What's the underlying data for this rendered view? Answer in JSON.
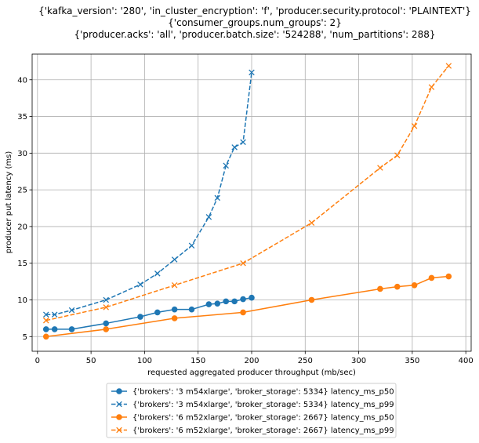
{
  "chart_data": {
    "type": "line",
    "title_lines": [
      "{'kafka_version': '280', 'in_cluster_encryption': 'f', 'producer.security.protocol': 'PLAINTEXT'}",
      "{'consumer_groups.num_groups': 2}",
      "{'producer.acks': 'all', 'producer.batch.size': '524288', 'num_partitions': 288}"
    ],
    "xlabel": "requested aggregated producer throughput (mb/sec)",
    "ylabel": "producer put latency (ms)",
    "xlim": [
      -5,
      405
    ],
    "ylim": [
      3,
      43.5
    ],
    "xticks": [
      0,
      50,
      100,
      150,
      200,
      250,
      300,
      350,
      400
    ],
    "yticks": [
      5,
      10,
      15,
      20,
      25,
      30,
      35,
      40
    ],
    "grid": true,
    "legend_position": "below-center",
    "series": [
      {
        "name": "{'brokers': '3 m54xlarge', 'broker_storage': 5334} latency_ms_p50",
        "color": "#1f77b4",
        "linestyle": "solid",
        "marker": "circle",
        "x": [
          8,
          16,
          32,
          64,
          96,
          112,
          128,
          144,
          160,
          168,
          176,
          184,
          192,
          200
        ],
        "y": [
          6.0,
          6.0,
          6.0,
          6.8,
          7.7,
          8.3,
          8.7,
          8.7,
          9.4,
          9.5,
          9.8,
          9.8,
          10.1,
          10.3
        ]
      },
      {
        "name": "{'brokers': '3 m54xlarge', 'broker_storage': 5334} latency_ms_p99",
        "color": "#1f77b4",
        "linestyle": "dashed",
        "marker": "x",
        "x": [
          8,
          16,
          32,
          64,
          96,
          112,
          128,
          144,
          160,
          168,
          176,
          184,
          192,
          200
        ],
        "y": [
          8.0,
          8.0,
          8.6,
          10.0,
          12.1,
          13.6,
          15.5,
          17.4,
          21.3,
          23.9,
          28.3,
          30.8,
          31.5,
          41.0
        ]
      },
      {
        "name": "{'brokers': '6 m52xlarge', 'broker_storage': 2667} latency_ms_p50",
        "color": "#ff7f0e",
        "linestyle": "solid",
        "marker": "circle",
        "x": [
          8,
          64,
          128,
          192,
          256,
          320,
          336,
          352,
          368,
          384
        ],
        "y": [
          5.0,
          6.0,
          7.5,
          8.3,
          10.0,
          11.5,
          11.8,
          12.0,
          13.0,
          13.2
        ]
      },
      {
        "name": "{'brokers': '6 m52xlarge', 'broker_storage': 2667} latency_ms_p99",
        "color": "#ff7f0e",
        "linestyle": "dashed",
        "marker": "x",
        "x": [
          8,
          64,
          128,
          192,
          256,
          320,
          336,
          352,
          368,
          384
        ],
        "y": [
          7.2,
          9.0,
          12.0,
          15.0,
          20.5,
          28.0,
          29.7,
          33.7,
          39.0,
          41.9
        ]
      }
    ]
  }
}
